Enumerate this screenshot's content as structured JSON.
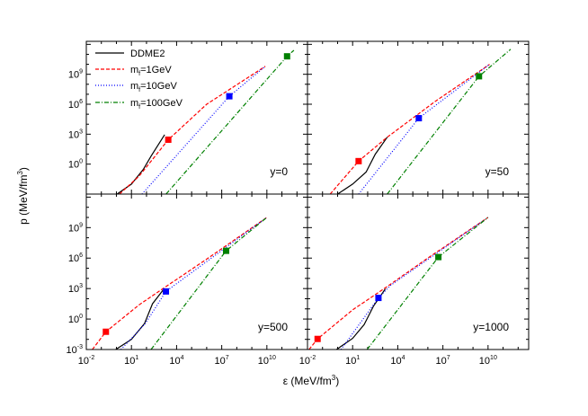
{
  "chart_data": {
    "type": "line",
    "xlabel": {
      "main": "ε (MeV/fm",
      "sup": "3",
      "end": ")"
    },
    "ylabel": {
      "main": "p (MeV/fm",
      "sup": "3",
      "end": ")"
    },
    "xscale": "log",
    "yscale": "log",
    "xlim": [
      0.01,
      5000000000000.0
    ],
    "ylim": [
      0.001,
      2000000000000.0
    ],
    "x_ticks": {
      "base": "10",
      "exponents": [
        "-2",
        "1",
        "4",
        "7",
        "10"
      ]
    },
    "y_ticks": {
      "base": "10",
      "exponents": [
        "-3",
        "0",
        "3",
        "6",
        "9"
      ]
    },
    "legend": {
      "placement": "top-left of first panel",
      "entries": [
        {
          "main": "DDME2",
          "sub": "",
          "rest": ""
        },
        {
          "main": "m",
          "sub": "f",
          "rest": "=1GeV"
        },
        {
          "main": "m",
          "sub": "f",
          "rest": "=10GeV"
        },
        {
          "main": "m",
          "sub": "f",
          "rest": "=100GeV"
        }
      ]
    },
    "series_styles": [
      {
        "key": "DDME2",
        "color": "#000000",
        "dash": "solid"
      },
      {
        "key": "mf1",
        "color": "#ff0000",
        "dash": "dashed"
      },
      {
        "key": "mf10",
        "color": "#0000ff",
        "dash": "dotted"
      },
      {
        "key": "mf100",
        "color": "#008000",
        "dash": "dash-dot"
      }
    ],
    "panels": [
      {
        "label": "y=0",
        "series": {
          "DDME2": [
            [
              1.1,
              0.001
            ],
            [
              10,
              0.01
            ],
            [
              63,
              0.32
            ],
            [
              200,
              6.3
            ],
            [
              1600,
              890
            ]
          ],
          "mf1": [
            [
              1.6,
              0.001
            ],
            [
              32,
              0.063
            ],
            [
              2800,
              280
            ],
            [
              1000000.0,
              1000000.0
            ],
            [
              7900000000.0,
              6300000000.0
            ]
          ],
          "mf10": [
            [
              50,
              0.001
            ],
            [
              32000000.0,
              6300000.0
            ],
            [
              7900000000.0,
              6300000000.0
            ]
          ],
          "mf100": [
            [
              2000,
              0.001
            ],
            [
              220000000000.0,
              63000000000.0
            ],
            [
              630000000000.0,
              250000000000.0
            ]
          ]
        },
        "markers": {
          "mf1": [
            2800,
            280
          ],
          "mf10": [
            32000000.0,
            6300000.0
          ],
          "mf100": [
            220000000000.0,
            63000000000.0
          ]
        }
      },
      {
        "label": "y=50",
        "series": {
          "DDME2": [
            [
              1,
              0.001
            ],
            [
              10,
              0.01
            ],
            [
              79,
              0.16
            ],
            [
              320,
              10
            ],
            [
              2000,
              500
            ]
          ],
          "mf1": [
            [
              0.32,
              0.001
            ],
            [
              25,
              2
            ],
            [
              2000,
              500
            ],
            [
              3200000.0,
              2000000.0
            ],
            [
              12600000000.0,
              10000000000.0
            ]
          ],
          "mf10": [
            [
              25,
              0.001
            ],
            [
              250000.0,
              40000.0
            ],
            [
              12600000000.0,
              10000000000.0
            ]
          ],
          "mf100": [
            [
              2000,
              0.001
            ],
            [
              2500000000.0,
              630000000.0
            ],
            [
              320000000000.0,
              320000000000.0
            ]
          ]
        },
        "markers": {
          "mf1": [
            25,
            2
          ],
          "mf10": [
            250000.0,
            40000.0
          ],
          "mf100": [
            2500000000.0,
            630000000.0
          ]
        }
      },
      {
        "label": "y=500",
        "series": {
          "DDME2": [
            [
              0.9,
              0.001
            ],
            [
              10,
              0.01
            ],
            [
              74,
              0.37
            ],
            [
              250,
              32
            ],
            [
              1500,
              1000
            ]
          ],
          "mf1": [
            [
              0.025,
              0.001
            ],
            [
              0.2,
              0.056
            ],
            [
              32,
              25
            ],
            [
              2000,
              1600
            ],
            [
              1000000.0,
              790000.0
            ],
            [
              10000000000.0,
              10000000000.0
            ]
          ],
          "mf10": [
            [
              2,
              0.001
            ],
            [
              79,
              0.32
            ],
            [
              1950,
              520
            ],
            [
              10000000000.0,
              10000000000.0
            ]
          ],
          "mf100": [
            [
              200,
              0.001
            ],
            [
              19500000.0,
              5200000.0
            ],
            [
              10000000000.0,
              10000000000.0
            ]
          ]
        },
        "markers": {
          "mf1": [
            0.2,
            0.056
          ],
          "mf10": [
            1950,
            520
          ],
          "mf100": [
            19500000.0,
            5200000.0
          ]
        }
      },
      {
        "label": "y=1000",
        "series": {
          "DDME2": [
            [
              0.85,
              0.001
            ],
            [
              10,
              0.0126
            ],
            [
              58,
              0.28
            ],
            [
              250,
              20
            ],
            [
              1500,
              930
            ]
          ],
          "mf1": [
            [
              0.0126,
              0.001
            ],
            [
              0.047,
              0.011
            ],
            [
              10,
              7.9
            ],
            [
              1600,
              1260
            ],
            [
              1000000.0,
              1000000.0
            ],
            [
              10000000000.0,
              10000000000.0
            ]
          ],
          "mf10": [
            [
              1.7,
              0.001
            ],
            [
              520,
              120
            ],
            [
              3200,
              2000
            ],
            [
              10000000000.0,
              10000000000.0
            ]
          ],
          "mf100": [
            [
              91,
              0.001
            ],
            [
              5000000.0,
              1260000.0
            ],
            [
              10000000000.0,
              10000000000.0
            ]
          ]
        },
        "markers": {
          "mf1": [
            0.047,
            0.011
          ],
          "mf10": [
            520,
            120
          ],
          "mf100": [
            5000000.0,
            1260000.0
          ]
        }
      }
    ]
  }
}
